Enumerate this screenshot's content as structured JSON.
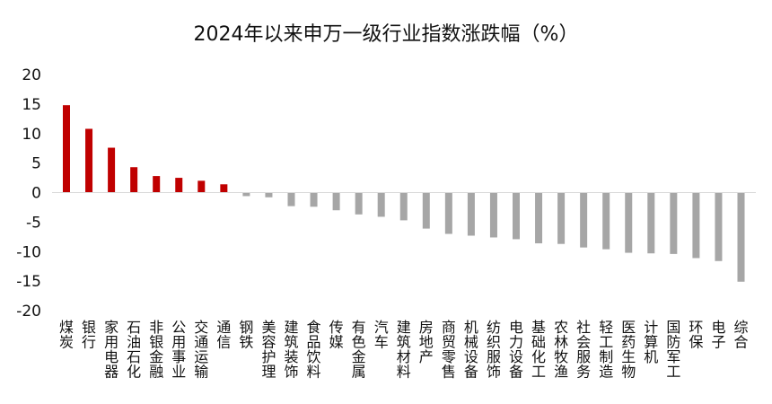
{
  "chart_data": {
    "type": "bar",
    "title": "2024年以来申万一级行业指数涨跌幅（%）",
    "xlabel": "",
    "ylabel": "",
    "ylim": [
      -20,
      20
    ],
    "yticks": [
      20,
      15,
      10,
      5,
      0,
      -5,
      -10,
      -15,
      -20
    ],
    "grid": false,
    "legend": "none",
    "categories": [
      "煤炭",
      "银行",
      "家用电器",
      "石油石化",
      "非银金融",
      "公用事业",
      "交通运输",
      "通信",
      "钢铁",
      "美容护理",
      "建筑装饰",
      "食品饮料",
      "传媒",
      "有色金属",
      "汽车",
      "建筑材料",
      "房地产",
      "商贸零售",
      "机械设备",
      "纺织服饰",
      "电力设备",
      "基础化工",
      "农林牧渔",
      "社会服务",
      "轻工制造",
      "医药生物",
      "计算机",
      "国防军工",
      "环保",
      "电子",
      "综合"
    ],
    "values": [
      14.8,
      10.8,
      7.6,
      4.3,
      2.8,
      2.5,
      2.0,
      1.4,
      -0.6,
      -0.8,
      -2.3,
      -2.4,
      -3.0,
      -3.7,
      -4.1,
      -4.7,
      -6.1,
      -7.0,
      -7.3,
      -7.6,
      -7.9,
      -8.6,
      -8.7,
      -9.3,
      -9.6,
      -10.2,
      -10.3,
      -10.4,
      -11.1,
      -11.6,
      -15.1
    ],
    "colors": {
      "positive": "#c00000",
      "negative": "#a6a6a6"
    }
  }
}
